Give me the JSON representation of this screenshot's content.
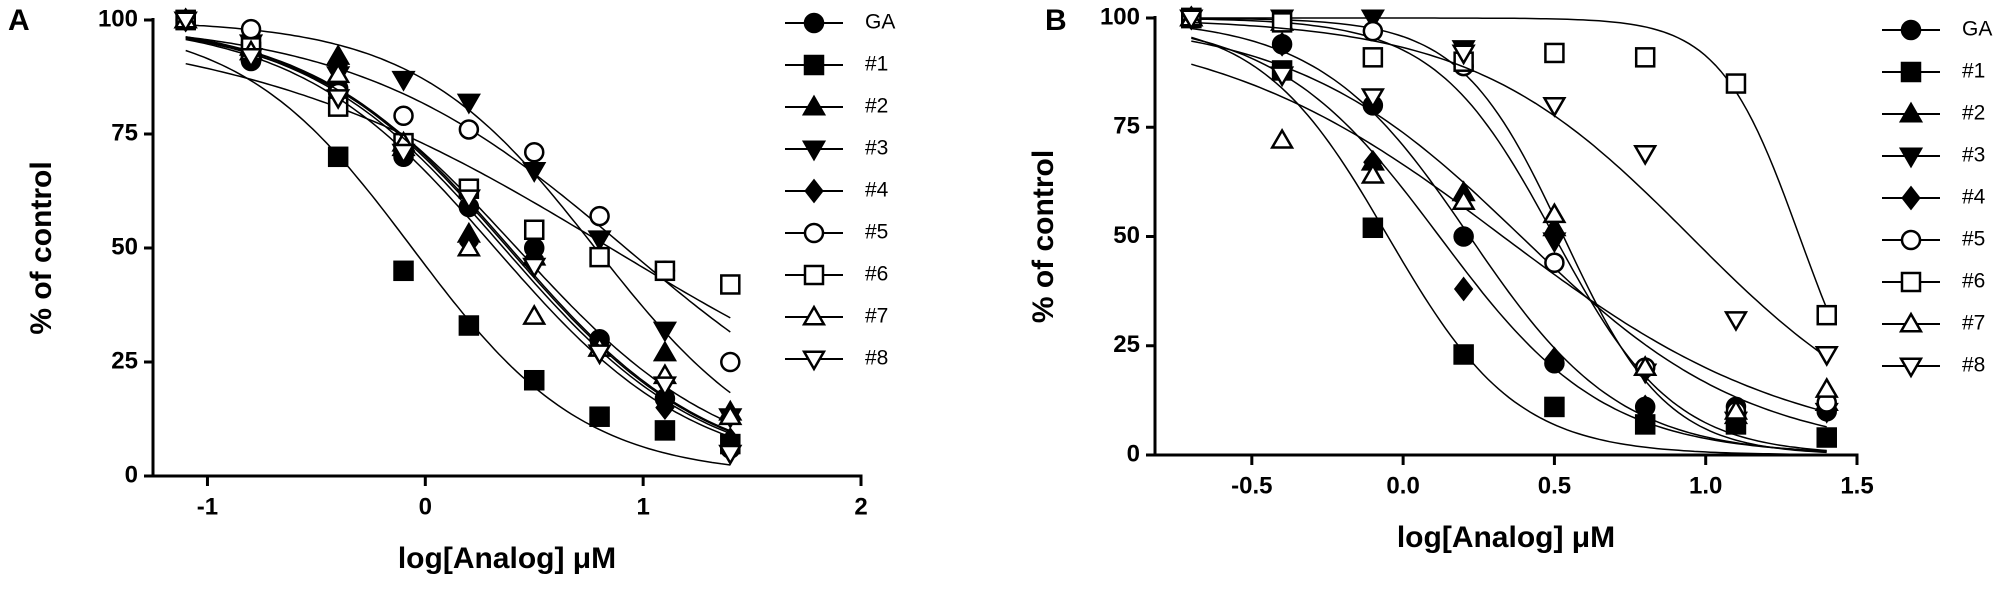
{
  "chart_data": [
    {
      "type": "scatter",
      "panel_label": "A",
      "xlabel": "log[Analog] μM",
      "ylabel": "% of control",
      "x": [
        -1.1,
        -0.8,
        -0.4,
        -0.1,
        0.2,
        0.5,
        0.8,
        1.1,
        1.4
      ],
      "xlim": [
        -1.25,
        2
      ],
      "xticks": [
        -1,
        0,
        1,
        2
      ],
      "ylim": [
        0,
        100
      ],
      "yticks": [
        0,
        25,
        50,
        75,
        100
      ],
      "series": [
        {
          "name": "GA",
          "color": "#000000",
          "marker": "circle",
          "filled": true,
          "values": [
            100,
            91,
            85,
            70,
            59,
            50,
            30,
            17,
            6
          ]
        },
        {
          "name": "#1",
          "color": "#000000",
          "marker": "square",
          "filled": true,
          "values": [
            100,
            93,
            70,
            45,
            33,
            21,
            13,
            10,
            7
          ]
        },
        {
          "name": "#2",
          "color": "#000000",
          "marker": "triangle-up",
          "filled": true,
          "values": [
            100,
            94,
            92,
            72,
            53,
            48,
            28,
            27,
            14
          ]
        },
        {
          "name": "#3",
          "color": "#000000",
          "marker": "triangle-down",
          "filled": true,
          "values": [
            100,
            95,
            88,
            87,
            82,
            67,
            52,
            32,
            13
          ]
        },
        {
          "name": "#4",
          "color": "#000000",
          "marker": "diamond",
          "filled": true,
          "values": [
            100,
            92,
            90,
            72,
            51,
            48,
            29,
            15,
            8
          ]
        },
        {
          "name": "#5",
          "color": "#000000",
          "marker": "circle",
          "filled": false,
          "values": [
            100,
            98,
            84,
            79,
            76,
            71,
            57,
            45,
            25
          ]
        },
        {
          "name": "#6",
          "color": "#000000",
          "marker": "square",
          "filled": false,
          "values": [
            100,
            94,
            81,
            73,
            63,
            54,
            48,
            45,
            42
          ]
        },
        {
          "name": "#7",
          "color": "#000000",
          "marker": "triangle-up",
          "filled": false,
          "values": [
            100,
            93,
            88,
            73,
            50,
            35,
            28,
            22,
            13
          ]
        },
        {
          "name": "#8",
          "color": "#000000",
          "marker": "triangle-down",
          "filled": false,
          "values": [
            100,
            92,
            83,
            71,
            61,
            46,
            27,
            20,
            5
          ]
        }
      ]
    },
    {
      "type": "scatter",
      "panel_label": "B",
      "xlabel": "log[Analog] μM",
      "ylabel": "% of control",
      "x": [
        -0.7,
        -0.4,
        -0.1,
        0.2,
        0.5,
        0.8,
        1.1,
        1.4
      ],
      "xlim": [
        -0.82,
        1.5
      ],
      "xticks": [
        -0.5,
        {
          "value": 0,
          "label": "0.0"
        },
        0.5,
        {
          "value": 1,
          "label": "1.0"
        },
        1.5
      ],
      "ylim": [
        0,
        100
      ],
      "yticks": [
        0,
        25,
        50,
        75,
        100
      ],
      "series": [
        {
          "name": "GA",
          "color": "#000000",
          "marker": "circle",
          "filled": true,
          "values": [
            100,
            94,
            80,
            50,
            21,
            11,
            11,
            10
          ]
        },
        {
          "name": "#1",
          "color": "#000000",
          "marker": "square",
          "filled": true,
          "values": [
            100,
            88,
            52,
            23,
            11,
            7,
            7,
            4
          ]
        },
        {
          "name": "#2",
          "color": "#000000",
          "marker": "triangle-up",
          "filled": true,
          "values": [
            100,
            99,
            67,
            60,
            52,
            20,
            9,
            12
          ]
        },
        {
          "name": "#3",
          "color": "#000000",
          "marker": "triangle-down",
          "filled": true,
          "values": [
            100,
            100,
            100,
            93,
            49,
            19,
            8,
            10
          ]
        },
        {
          "name": "#4",
          "color": "#000000",
          "marker": "diamond",
          "filled": true,
          "values": [
            100,
            94,
            67,
            38,
            22,
            11,
            9,
            11
          ]
        },
        {
          "name": "#5",
          "color": "#000000",
          "marker": "circle",
          "filled": false,
          "values": [
            100,
            99,
            97,
            89,
            44,
            20,
            10,
            12
          ]
        },
        {
          "name": "#6",
          "color": "#000000",
          "marker": "square",
          "filled": false,
          "values": [
            100,
            99,
            91,
            90,
            92,
            91,
            85,
            32
          ]
        },
        {
          "name": "#7",
          "color": "#000000",
          "marker": "triangle-up",
          "filled": false,
          "values": [
            100,
            72,
            64,
            58,
            55,
            20,
            10,
            15
          ]
        },
        {
          "name": "#8",
          "color": "#000000",
          "marker": "triangle-down",
          "filled": false,
          "values": [
            100,
            87,
            82,
            92,
            80,
            69,
            31,
            23
          ]
        }
      ]
    }
  ]
}
